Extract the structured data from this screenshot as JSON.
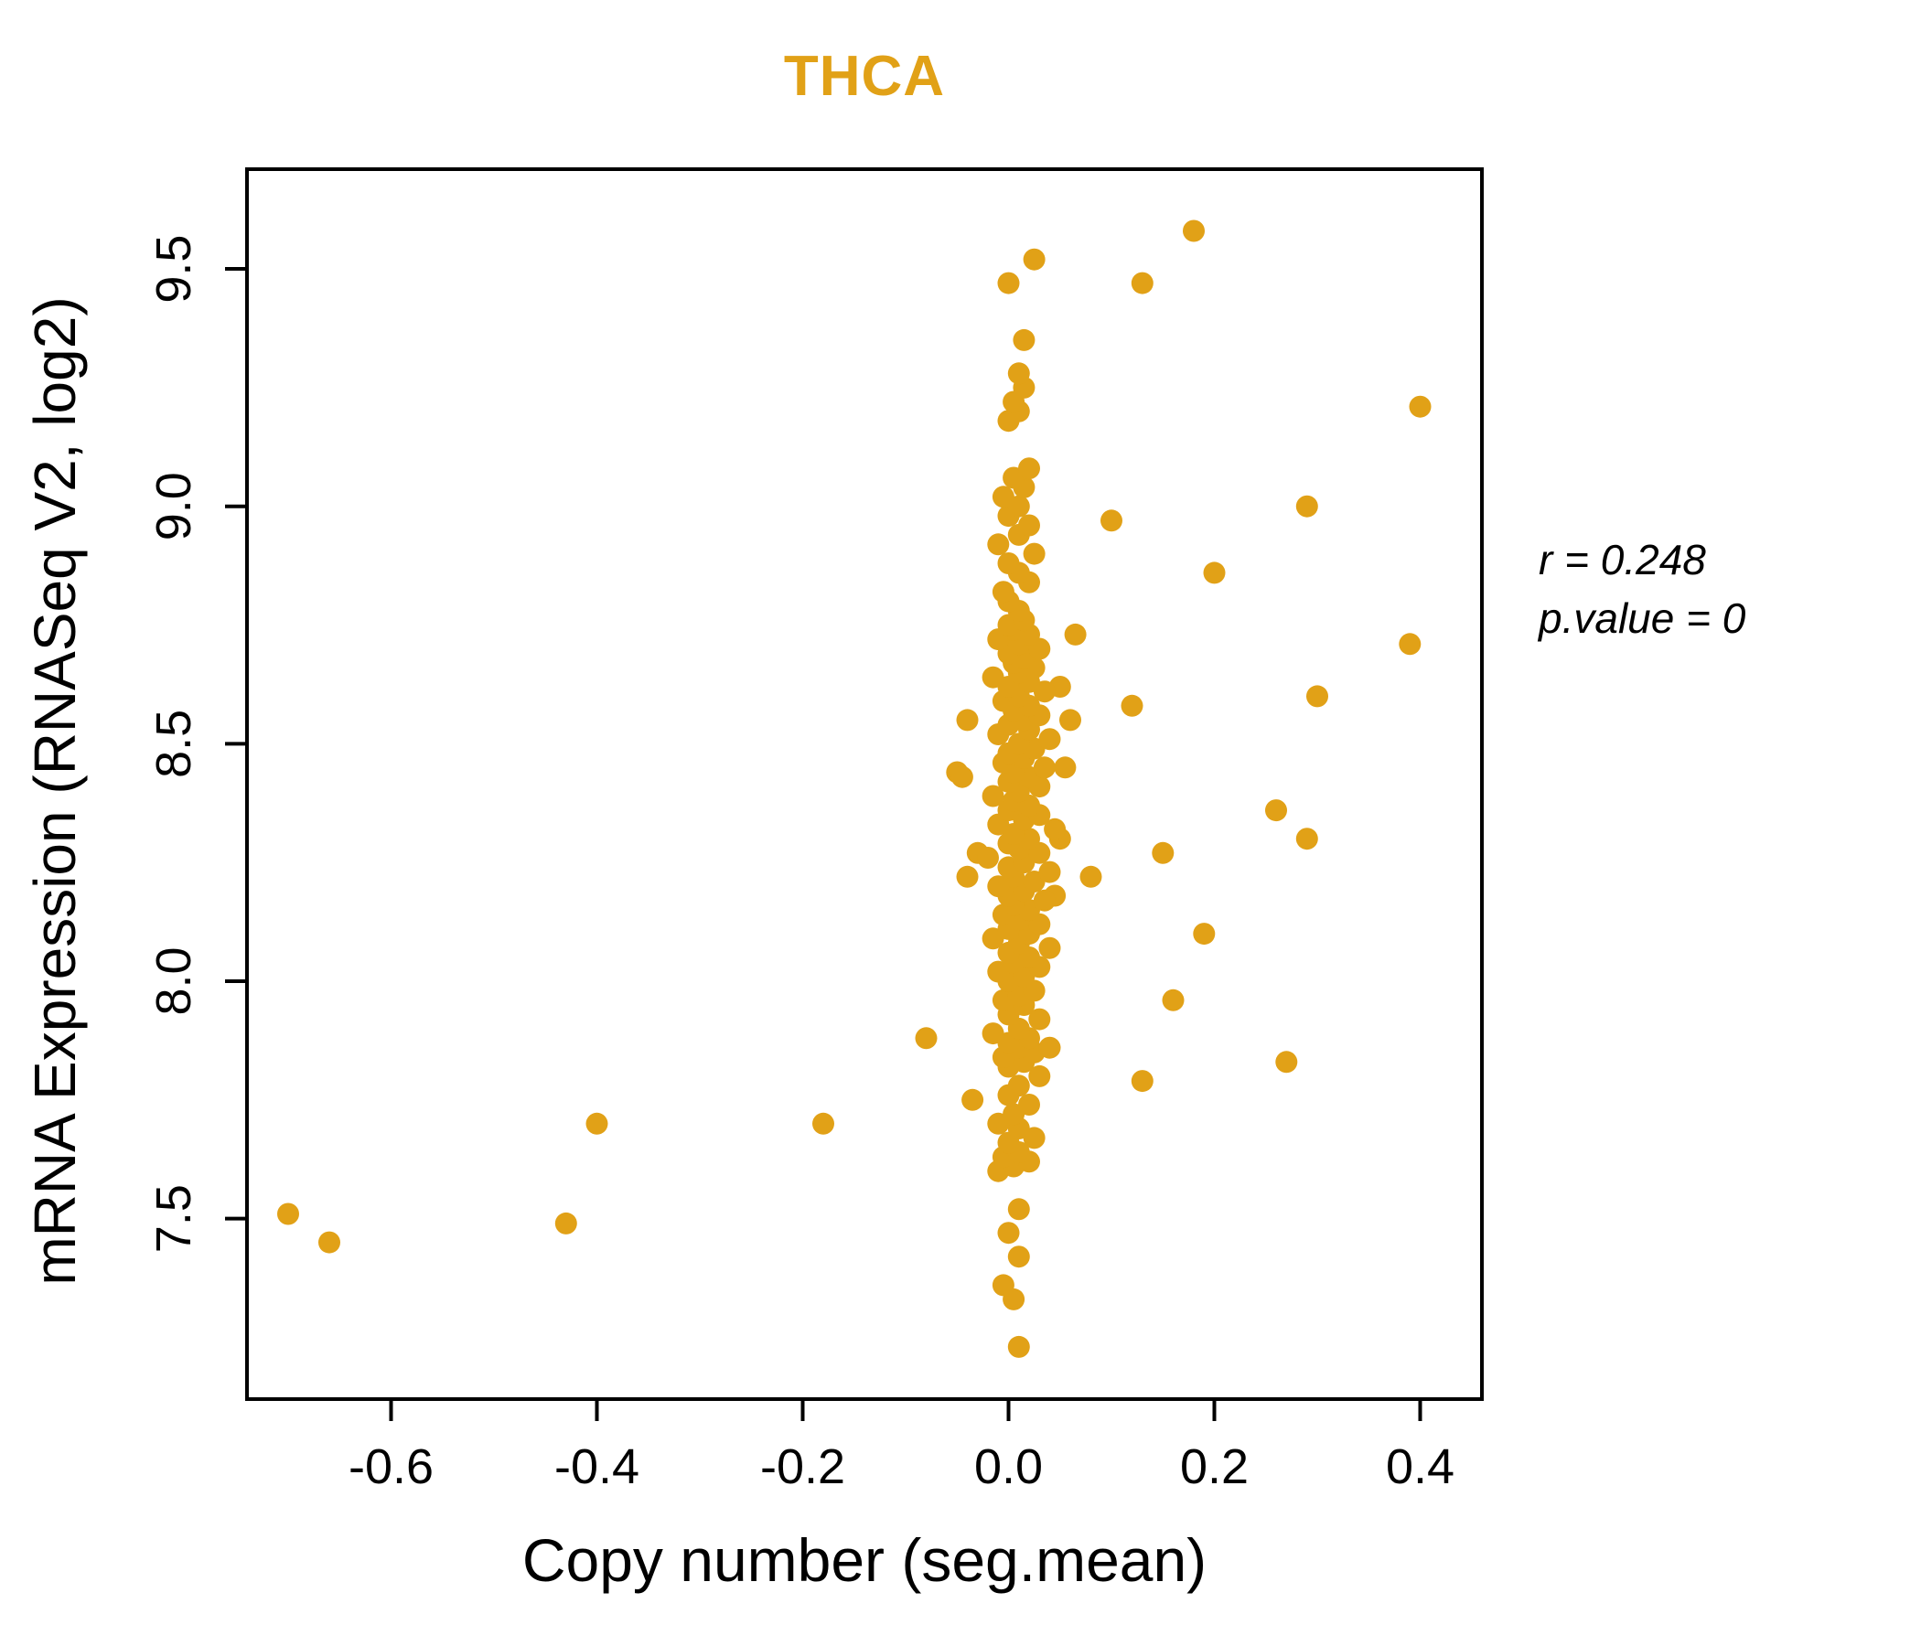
{
  "title": "THCA",
  "annotation": {
    "line1": "r = 0.248",
    "line2": "p.value = 0"
  },
  "chart_data": {
    "type": "scatter",
    "title": "THCA",
    "xlabel": "Copy number (seg.mean)",
    "ylabel": "mRNA Expression (RNASeq V2, log2)",
    "xlim": [
      -0.74,
      0.46
    ],
    "ylim": [
      7.12,
      9.71
    ],
    "grid": false,
    "legend": "none",
    "point_color": "#E1A117",
    "axis_color": "#000000",
    "xticks": [
      {
        "value": -0.6,
        "label": "-0.6"
      },
      {
        "value": -0.4,
        "label": "-0.4"
      },
      {
        "value": -0.2,
        "label": "-0.2"
      },
      {
        "value": 0.0,
        "label": "0.0"
      },
      {
        "value": 0.2,
        "label": "0.2"
      },
      {
        "value": 0.4,
        "label": "0.4"
      }
    ],
    "yticks": [
      {
        "value": 7.5,
        "label": "7.5"
      },
      {
        "value": 8.0,
        "label": "8.0"
      },
      {
        "value": 8.5,
        "label": "8.5"
      },
      {
        "value": 9.0,
        "label": "9.0"
      },
      {
        "value": 9.5,
        "label": "9.5"
      }
    ],
    "points": [
      [
        -0.7,
        7.51
      ],
      [
        -0.66,
        7.45
      ],
      [
        -0.43,
        7.49
      ],
      [
        -0.4,
        7.7
      ],
      [
        -0.18,
        7.7
      ],
      [
        -0.08,
        7.88
      ],
      [
        0.13,
        9.47
      ],
      [
        0.18,
        9.58
      ],
      [
        0.4,
        9.21
      ],
      [
        0.39,
        8.71
      ],
      [
        0.29,
        9.0
      ],
      [
        0.3,
        8.6
      ],
      [
        0.2,
        8.86
      ],
      [
        0.1,
        8.97
      ],
      [
        0.12,
        8.58
      ],
      [
        0.26,
        8.36
      ],
      [
        0.29,
        8.3
      ],
      [
        0.15,
        8.27
      ],
      [
        0.19,
        8.1
      ],
      [
        0.16,
        7.96
      ],
      [
        0.13,
        7.79
      ],
      [
        0.27,
        7.83
      ],
      [
        0.08,
        8.22
      ],
      [
        0.065,
        8.73
      ],
      [
        0.06,
        8.55
      ],
      [
        0.055,
        8.45
      ],
      [
        0.05,
        8.62
      ],
      [
        0.05,
        8.3
      ],
      [
        0.045,
        8.18
      ],
      [
        -0.05,
        8.44
      ],
      [
        -0.04,
        8.55
      ],
      [
        -0.045,
        8.43
      ],
      [
        -0.04,
        8.22
      ],
      [
        -0.03,
        8.27
      ],
      [
        -0.035,
        7.75
      ],
      [
        0.01,
        7.23
      ],
      [
        0.005,
        7.33
      ],
      [
        -0.005,
        7.36
      ],
      [
        0.01,
        7.42
      ],
      [
        0.0,
        7.47
      ],
      [
        0.01,
        7.52
      ],
      [
        -0.01,
        7.6
      ],
      [
        0.005,
        7.61
      ],
      [
        0.02,
        7.62
      ],
      [
        -0.005,
        7.63
      ],
      [
        0.01,
        7.64
      ],
      [
        0.0,
        7.66
      ],
      [
        0.025,
        7.67
      ],
      [
        0.01,
        7.69
      ],
      [
        -0.01,
        7.7
      ],
      [
        0.005,
        7.72
      ],
      [
        0.02,
        7.74
      ],
      [
        0.0,
        7.76
      ],
      [
        0.01,
        7.78
      ],
      [
        0.03,
        7.8
      ],
      [
        0.0,
        7.82
      ],
      [
        0.015,
        7.83
      ],
      [
        -0.005,
        7.84
      ],
      [
        0.025,
        7.85
      ],
      [
        0.01,
        7.86
      ],
      [
        0.04,
        7.86
      ],
      [
        0.0,
        7.87
      ],
      [
        0.02,
        7.88
      ],
      [
        -0.015,
        7.89
      ],
      [
        0.01,
        7.9
      ],
      [
        0.03,
        7.92
      ],
      [
        0.0,
        7.93
      ],
      [
        0.015,
        7.95
      ],
      [
        -0.005,
        7.96
      ],
      [
        0.01,
        7.97
      ],
      [
        0.025,
        7.98
      ],
      [
        0.0,
        8.0
      ],
      [
        0.015,
        8.01
      ],
      [
        -0.01,
        8.02
      ],
      [
        0.03,
        8.03
      ],
      [
        0.005,
        8.04
      ],
      [
        0.02,
        8.05
      ],
      [
        0.0,
        8.06
      ],
      [
        0.04,
        8.07
      ],
      [
        0.01,
        8.08
      ],
      [
        -0.015,
        8.09
      ],
      [
        0.02,
        8.1
      ],
      [
        0.0,
        8.11
      ],
      [
        0.03,
        8.12
      ],
      [
        0.01,
        8.13
      ],
      [
        -0.005,
        8.14
      ],
      [
        0.02,
        8.15
      ],
      [
        0.005,
        8.16
      ],
      [
        0.035,
        8.17
      ],
      [
        0.0,
        8.18
      ],
      [
        0.015,
        8.19
      ],
      [
        -0.01,
        8.2
      ],
      [
        0.025,
        8.21
      ],
      [
        0.005,
        8.22
      ],
      [
        0.04,
        8.23
      ],
      [
        0.0,
        8.24
      ],
      [
        0.015,
        8.25
      ],
      [
        -0.02,
        8.26
      ],
      [
        0.03,
        8.27
      ],
      [
        0.01,
        8.28
      ],
      [
        0.0,
        8.29
      ],
      [
        0.02,
        8.3
      ],
      [
        0.005,
        8.31
      ],
      [
        0.045,
        8.32
      ],
      [
        -0.01,
        8.33
      ],
      [
        0.015,
        8.34
      ],
      [
        0.03,
        8.35
      ],
      [
        0.0,
        8.36
      ],
      [
        0.02,
        8.37
      ],
      [
        0.005,
        8.38
      ],
      [
        -0.015,
        8.39
      ],
      [
        0.01,
        8.4
      ],
      [
        0.03,
        8.41
      ],
      [
        0.0,
        8.42
      ],
      [
        0.02,
        8.43
      ],
      [
        0.005,
        8.44
      ],
      [
        0.035,
        8.45
      ],
      [
        -0.005,
        8.46
      ],
      [
        0.015,
        8.47
      ],
      [
        0.0,
        8.48
      ],
      [
        0.025,
        8.49
      ],
      [
        0.01,
        8.5
      ],
      [
        0.04,
        8.51
      ],
      [
        -0.01,
        8.52
      ],
      [
        0.02,
        8.53
      ],
      [
        0.0,
        8.54
      ],
      [
        0.015,
        8.55
      ],
      [
        0.03,
        8.56
      ],
      [
        0.005,
        8.57
      ],
      [
        0.02,
        8.58
      ],
      [
        -0.005,
        8.59
      ],
      [
        0.01,
        8.6
      ],
      [
        0.035,
        8.61
      ],
      [
        0.0,
        8.62
      ],
      [
        0.02,
        8.63
      ],
      [
        -0.015,
        8.64
      ],
      [
        0.01,
        8.65
      ],
      [
        0.025,
        8.66
      ],
      [
        0.005,
        8.67
      ],
      [
        0.015,
        8.68
      ],
      [
        0.0,
        8.69
      ],
      [
        0.03,
        8.7
      ],
      [
        0.01,
        8.71
      ],
      [
        -0.01,
        8.72
      ],
      [
        0.02,
        8.73
      ],
      [
        0.005,
        8.74
      ],
      [
        0.0,
        8.75
      ],
      [
        0.015,
        8.76
      ],
      [
        0.01,
        8.78
      ],
      [
        0.0,
        8.8
      ],
      [
        -0.005,
        8.82
      ],
      [
        0.02,
        8.84
      ],
      [
        0.01,
        8.86
      ],
      [
        0.0,
        8.88
      ],
      [
        0.025,
        8.9
      ],
      [
        -0.01,
        8.92
      ],
      [
        0.01,
        8.94
      ],
      [
        0.02,
        8.96
      ],
      [
        0.0,
        8.98
      ],
      [
        0.01,
        9.0
      ],
      [
        -0.005,
        9.02
      ],
      [
        0.015,
        9.04
      ],
      [
        0.005,
        9.06
      ],
      [
        0.02,
        9.08
      ],
      [
        0.0,
        9.18
      ],
      [
        0.01,
        9.2
      ],
      [
        0.005,
        9.22
      ],
      [
        0.015,
        9.25
      ],
      [
        0.01,
        9.28
      ],
      [
        0.015,
        9.35
      ],
      [
        0.0,
        9.47
      ],
      [
        0.025,
        9.52
      ]
    ],
    "stats": {
      "r": 0.248,
      "p_value": 0
    }
  }
}
